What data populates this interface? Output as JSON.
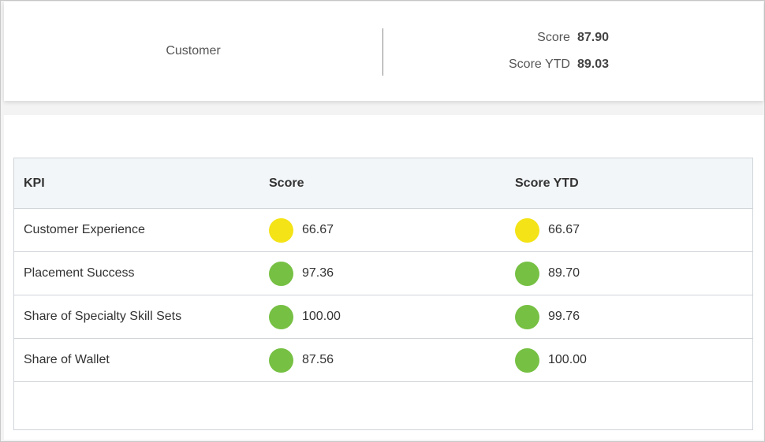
{
  "summary": {
    "customer_label": "Customer",
    "score_label": "Score",
    "score_value": "87.90",
    "score_ytd_label": "Score YTD",
    "score_ytd_value": "89.03"
  },
  "table": {
    "headers": [
      "KPI",
      "Score",
      "Score YTD"
    ],
    "rows": [
      {
        "kpi": "Customer Experience",
        "score": "66.67",
        "score_status": "yellow",
        "ytd": "66.67",
        "ytd_status": "yellow"
      },
      {
        "kpi": "Placement Success",
        "score": "97.36",
        "score_status": "green",
        "ytd": "89.70",
        "ytd_status": "green"
      },
      {
        "kpi": "Share of Specialty Skill Sets",
        "score": "100.00",
        "score_status": "green",
        "ytd": "99.76",
        "ytd_status": "green"
      },
      {
        "kpi": "Share of Wallet",
        "score": "87.56",
        "score_status": "green",
        "ytd": "100.00",
        "ytd_status": "green"
      }
    ]
  },
  "colors": {
    "yellow": "#f4e316",
    "green": "#76c043"
  }
}
